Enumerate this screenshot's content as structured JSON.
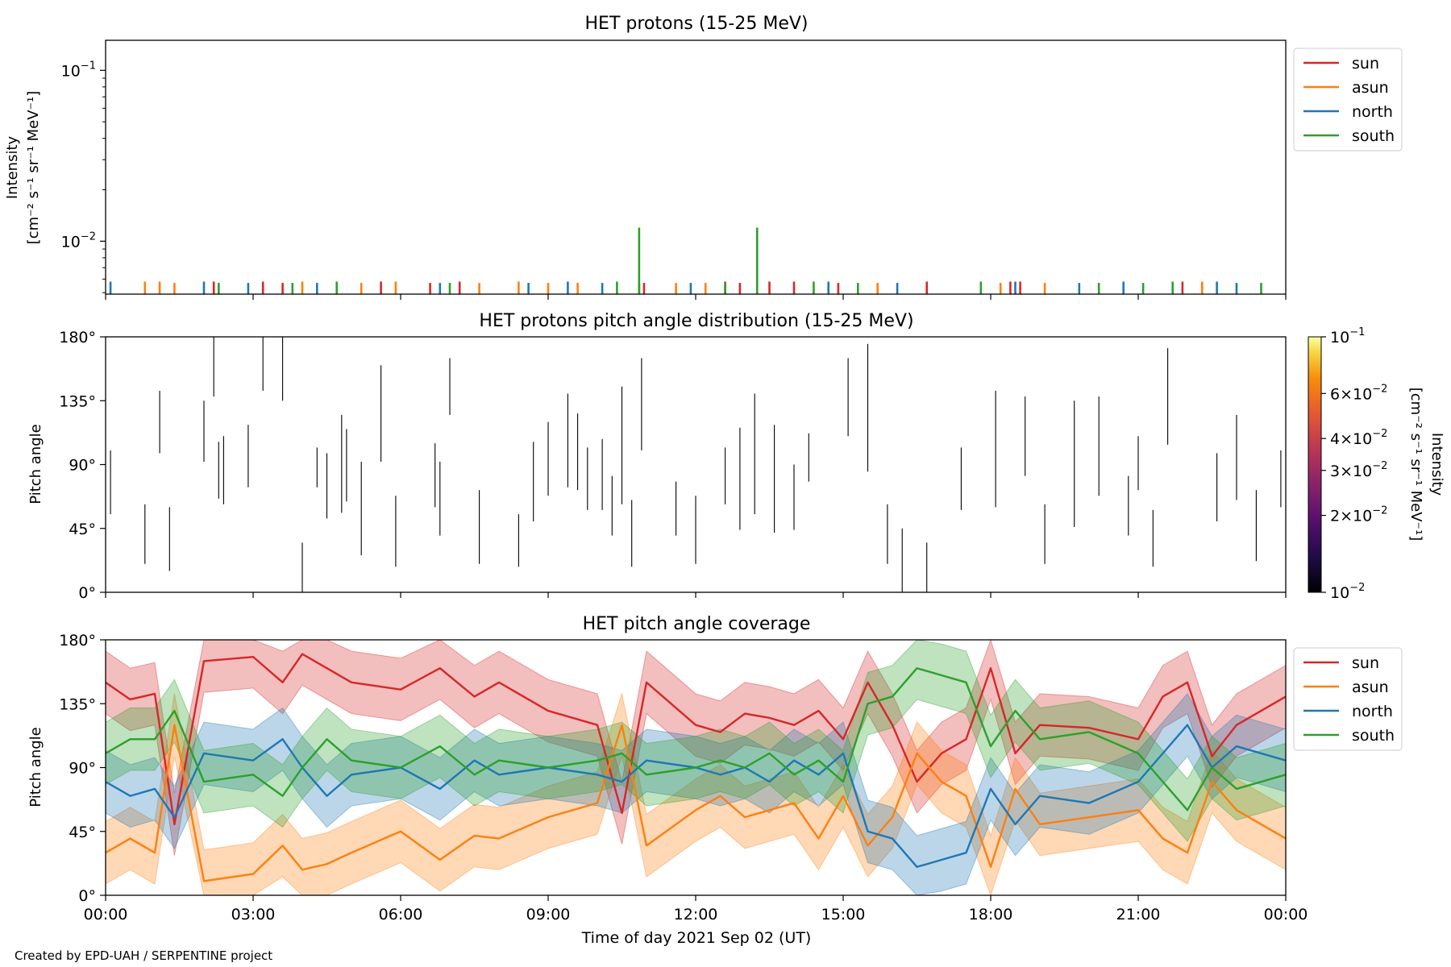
{
  "footer": {
    "credit": "Created by EPD-UAH / SERPENTINE project"
  },
  "chart_data": [
    {
      "type": "line",
      "title": "HET protons (15-25 MeV)",
      "ylabel_lines": [
        "Intensity",
        "[cm⁻² s⁻¹ sr⁻¹ MeV⁻¹]"
      ],
      "yscale": "log",
      "ylim": [
        0.0049,
        0.15
      ],
      "yticks": [
        {
          "value": 0.1,
          "base": "10",
          "exp": "−1"
        },
        {
          "value": 0.01,
          "base": "10",
          "exp": "−2"
        }
      ],
      "xlim_hours": [
        0,
        24
      ],
      "legend_position": "outside-right",
      "legend": [
        "sun",
        "asun",
        "north",
        "south"
      ],
      "colors": {
        "sun": "#d62728",
        "asun": "#ff7f0e",
        "north": "#1f77b4",
        "south": "#2ca02c"
      },
      "note": "sparse isolated points",
      "series": [
        {
          "name": "sun",
          "points": [
            [
              2.2,
              0.0058
            ],
            [
              3.2,
              0.0058
            ],
            [
              3.6,
              0.0057
            ],
            [
              5.6,
              0.0058
            ],
            [
              6.6,
              0.0057
            ],
            [
              7.2,
              0.0058
            ],
            [
              10.85,
              0.0057
            ],
            [
              10.95,
              0.0057
            ],
            [
              12.6,
              0.0058
            ],
            [
              12.9,
              0.0057
            ],
            [
              13.5,
              0.0058
            ],
            [
              14.0,
              0.0058
            ],
            [
              14.9,
              0.0057
            ],
            [
              16.7,
              0.0058
            ],
            [
              18.4,
              0.0058
            ],
            [
              18.6,
              0.0058
            ],
            [
              21.9,
              0.0058
            ]
          ]
        },
        {
          "name": "asun",
          "points": [
            [
              0.8,
              0.0058
            ],
            [
              1.1,
              0.0058
            ],
            [
              1.4,
              0.0057
            ],
            [
              4.0,
              0.0058
            ],
            [
              5.2,
              0.0057
            ],
            [
              5.9,
              0.0058
            ],
            [
              7.6,
              0.0057
            ],
            [
              8.4,
              0.0058
            ],
            [
              9.0,
              0.0057
            ],
            [
              9.6,
              0.0057
            ],
            [
              11.6,
              0.0057
            ],
            [
              12.2,
              0.0057
            ],
            [
              15.7,
              0.0057
            ],
            [
              18.2,
              0.0057
            ],
            [
              19.1,
              0.0057
            ],
            [
              22.3,
              0.0058
            ]
          ]
        },
        {
          "name": "north",
          "points": [
            [
              0.1,
              0.0058
            ],
            [
              2.0,
              0.0058
            ],
            [
              2.9,
              0.0057
            ],
            [
              4.3,
              0.0057
            ],
            [
              6.8,
              0.0057
            ],
            [
              8.6,
              0.0057
            ],
            [
              9.4,
              0.0058
            ],
            [
              10.1,
              0.0057
            ],
            [
              11.9,
              0.0057
            ],
            [
              14.7,
              0.0058
            ],
            [
              16.1,
              0.0057
            ],
            [
              18.5,
              0.0058
            ],
            [
              19.8,
              0.0057
            ],
            [
              20.7,
              0.0058
            ],
            [
              22.6,
              0.0058
            ],
            [
              23.0,
              0.0057
            ]
          ]
        },
        {
          "name": "south",
          "points": [
            [
              2.3,
              0.0057
            ],
            [
              3.8,
              0.0057
            ],
            [
              4.7,
              0.0058
            ],
            [
              7.0,
              0.0057
            ],
            [
              10.4,
              0.0058
            ],
            [
              10.85,
              0.012
            ],
            [
              12.6,
              0.0057
            ],
            [
              13.25,
              0.012
            ],
            [
              14.4,
              0.0058
            ],
            [
              15.3,
              0.0057
            ],
            [
              17.8,
              0.0058
            ],
            [
              20.2,
              0.0057
            ],
            [
              21.1,
              0.0057
            ],
            [
              21.7,
              0.0058
            ],
            [
              23.5,
              0.0057
            ]
          ]
        }
      ]
    },
    {
      "type": "heatmap",
      "title": "HET protons pitch angle distribution (15-25 MeV)",
      "ylabel": "Pitch angle",
      "yticks": [
        "0°",
        "45°",
        "90°",
        "135°",
        "180°"
      ],
      "ylim": [
        0,
        180
      ],
      "xlim_hours": [
        0,
        24
      ],
      "colorbar": {
        "scale": "log",
        "range": [
          0.01,
          0.1
        ],
        "label_lines": [
          "Intensity",
          "[cm⁻² s⁻¹ sr⁻¹ MeV⁻¹]"
        ],
        "ticks": [
          {
            "value": 0.1,
            "base": "10",
            "exp": "−1"
          },
          {
            "value": 0.06,
            "base": "6×10",
            "exp": "−2"
          },
          {
            "value": 0.04,
            "base": "4×10",
            "exp": "−2"
          },
          {
            "value": 0.03,
            "base": "3×10",
            "exp": "−2"
          },
          {
            "value": 0.02,
            "base": "2×10",
            "exp": "−2"
          },
          {
            "value": 0.01,
            "base": "10",
            "exp": "−2"
          }
        ]
      },
      "segments": [
        [
          0.1,
          55,
          100
        ],
        [
          0.8,
          20,
          62
        ],
        [
          1.1,
          98,
          142
        ],
        [
          1.3,
          15,
          60
        ],
        [
          2.0,
          92,
          135
        ],
        [
          2.2,
          138,
          180
        ],
        [
          2.3,
          66,
          106
        ],
        [
          2.4,
          62,
          110
        ],
        [
          2.9,
          74,
          118
        ],
        [
          3.2,
          142,
          180
        ],
        [
          3.6,
          135,
          180
        ],
        [
          4.0,
          0,
          35
        ],
        [
          4.3,
          74,
          102
        ],
        [
          4.5,
          52,
          98
        ],
        [
          4.8,
          56,
          125
        ],
        [
          4.9,
          64,
          115
        ],
        [
          5.2,
          26,
          92
        ],
        [
          5.6,
          92,
          160
        ],
        [
          5.9,
          18,
          68
        ],
        [
          6.7,
          60,
          105
        ],
        [
          6.8,
          40,
          92
        ],
        [
          7.0,
          125,
          165
        ],
        [
          7.6,
          20,
          72
        ],
        [
          8.4,
          18,
          55
        ],
        [
          8.7,
          50,
          106
        ],
        [
          9.0,
          68,
          120
        ],
        [
          9.4,
          74,
          140
        ],
        [
          9.6,
          72,
          126
        ],
        [
          9.8,
          58,
          102
        ],
        [
          10.1,
          58,
          108
        ],
        [
          10.3,
          40,
          82
        ],
        [
          10.5,
          62,
          145
        ],
        [
          10.7,
          18,
          65
        ],
        [
          10.9,
          100,
          165
        ],
        [
          11.6,
          40,
          78
        ],
        [
          12.0,
          20,
          68
        ],
        [
          12.6,
          62,
          102
        ],
        [
          12.9,
          44,
          116
        ],
        [
          13.2,
          55,
          140
        ],
        [
          13.6,
          42,
          118
        ],
        [
          14.0,
          44,
          90
        ],
        [
          14.3,
          78,
          112
        ],
        [
          15.1,
          110,
          165
        ],
        [
          15.5,
          85,
          175
        ],
        [
          15.9,
          20,
          62
        ],
        [
          16.2,
          0,
          45
        ],
        [
          16.7,
          0,
          35
        ],
        [
          17.4,
          58,
          102
        ],
        [
          18.1,
          60,
          142
        ],
        [
          18.7,
          82,
          138
        ],
        [
          19.1,
          20,
          62
        ],
        [
          19.7,
          46,
          135
        ],
        [
          20.2,
          68,
          138
        ],
        [
          20.8,
          40,
          82
        ],
        [
          21.0,
          72,
          110
        ],
        [
          21.3,
          18,
          58
        ],
        [
          21.6,
          104,
          172
        ],
        [
          22.6,
          50,
          98
        ],
        [
          23.0,
          65,
          125
        ],
        [
          23.4,
          22,
          72
        ],
        [
          23.9,
          60,
          100
        ]
      ]
    },
    {
      "type": "area",
      "title": "HET pitch angle coverage",
      "ylabel": "Pitch angle",
      "xlabel": "Time of day 2021 Sep 02 (UT)",
      "yticks": [
        "0°",
        "45°",
        "90°",
        "135°",
        "180°"
      ],
      "ylim": [
        0,
        180
      ],
      "xlim_hours": [
        0,
        24
      ],
      "xticks": [
        "00:00",
        "03:00",
        "06:00",
        "09:00",
        "12:00",
        "15:00",
        "18:00",
        "21:00",
        "00:00"
      ],
      "legend_position": "outside-right",
      "legend": [
        "sun",
        "asun",
        "north",
        "south"
      ],
      "band_halfwidth_deg": 22,
      "series": [
        {
          "name": "sun",
          "x": [
            0,
            0.5,
            1,
            1.4,
            2,
            3,
            3.6,
            4,
            4.5,
            5,
            6,
            6.8,
            7.5,
            8,
            9,
            10,
            10.5,
            11,
            12,
            12.5,
            13,
            13.5,
            14,
            14.5,
            15,
            15.5,
            16,
            16.5,
            17,
            17.5,
            18,
            18.5,
            19,
            20,
            21,
            21.5,
            22,
            22.5,
            23,
            24
          ],
          "y": [
            150,
            138,
            142,
            50,
            165,
            168,
            150,
            170,
            160,
            150,
            145,
            160,
            140,
            150,
            130,
            120,
            58,
            150,
            120,
            115,
            128,
            125,
            120,
            130,
            110,
            150,
            120,
            80,
            100,
            110,
            160,
            100,
            120,
            118,
            110,
            140,
            150,
            98,
            120,
            140
          ]
        },
        {
          "name": "asun",
          "x": [
            0,
            0.5,
            1,
            1.4,
            2,
            3,
            3.6,
            4,
            4.5,
            5,
            6,
            6.8,
            7.5,
            8,
            9,
            10,
            10.5,
            11,
            12,
            12.5,
            13,
            13.5,
            14,
            14.5,
            15,
            15.5,
            16,
            16.5,
            17,
            17.5,
            18,
            18.5,
            19,
            20,
            21,
            21.5,
            22,
            22.5,
            23,
            24
          ],
          "y": [
            30,
            40,
            30,
            120,
            10,
            15,
            35,
            18,
            22,
            30,
            45,
            25,
            42,
            40,
            55,
            65,
            120,
            35,
            60,
            70,
            55,
            60,
            65,
            40,
            70,
            35,
            55,
            100,
            80,
            70,
            20,
            75,
            50,
            55,
            60,
            40,
            30,
            80,
            60,
            40
          ]
        },
        {
          "name": "north",
          "x": [
            0,
            0.5,
            1,
            1.4,
            2,
            3,
            3.6,
            4,
            4.5,
            5,
            6,
            6.8,
            7.5,
            8,
            9,
            10,
            10.5,
            11,
            12,
            12.5,
            13,
            13.5,
            14,
            14.5,
            15,
            15.5,
            16,
            16.5,
            17,
            17.5,
            18,
            18.5,
            19,
            20,
            21,
            21.5,
            22,
            22.5,
            23,
            24
          ],
          "y": [
            80,
            70,
            75,
            55,
            100,
            95,
            110,
            90,
            70,
            85,
            90,
            75,
            95,
            85,
            90,
            85,
            80,
            95,
            90,
            85,
            90,
            80,
            95,
            85,
            100,
            45,
            40,
            20,
            25,
            30,
            75,
            50,
            70,
            65,
            80,
            100,
            120,
            90,
            105,
            95
          ]
        },
        {
          "name": "south",
          "x": [
            0,
            0.5,
            1,
            1.4,
            2,
            3,
            3.6,
            4,
            4.5,
            5,
            6,
            6.8,
            7.5,
            8,
            9,
            10,
            10.5,
            11,
            12,
            12.5,
            13,
            13.5,
            14,
            14.5,
            15,
            15.5,
            16,
            16.5,
            17,
            17.5,
            18,
            18.5,
            19,
            20,
            21,
            21.5,
            22,
            22.5,
            23,
            24
          ],
          "y": [
            100,
            110,
            110,
            130,
            80,
            85,
            70,
            90,
            110,
            95,
            90,
            105,
            85,
            95,
            90,
            95,
            100,
            85,
            90,
            95,
            90,
            100,
            85,
            95,
            80,
            135,
            140,
            160,
            155,
            150,
            105,
            130,
            110,
            115,
            100,
            80,
            60,
            90,
            75,
            85
          ]
        }
      ]
    }
  ]
}
